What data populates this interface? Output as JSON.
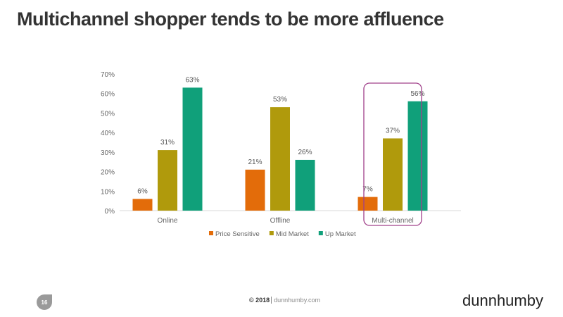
{
  "title": "Multichannel shopper tends to be more affluence",
  "footer": {
    "page": "16",
    "copyright": "© 2018",
    "site": "dunnhumby.com",
    "logo": "dunnhumby"
  },
  "chart_data": {
    "type": "bar",
    "categories": [
      "Online",
      "Offline",
      "Multi-channel"
    ],
    "series": [
      {
        "name": "Price Sensitive",
        "color": "#E36C0A",
        "values": [
          6,
          21,
          7
        ]
      },
      {
        "name": "Mid Market",
        "color": "#B09A0C",
        "values": [
          31,
          53,
          37
        ]
      },
      {
        "name": "Up Market",
        "color": "#10A07A",
        "values": [
          63,
          26,
          56
        ]
      }
    ],
    "yticks": [
      "0%",
      "10%",
      "20%",
      "30%",
      "40%",
      "50%",
      "60%",
      "70%"
    ],
    "ylim": [
      0,
      70
    ],
    "legend": "bottom",
    "highlight": {
      "category": "Multi-channel",
      "color": "#A0408A"
    }
  }
}
